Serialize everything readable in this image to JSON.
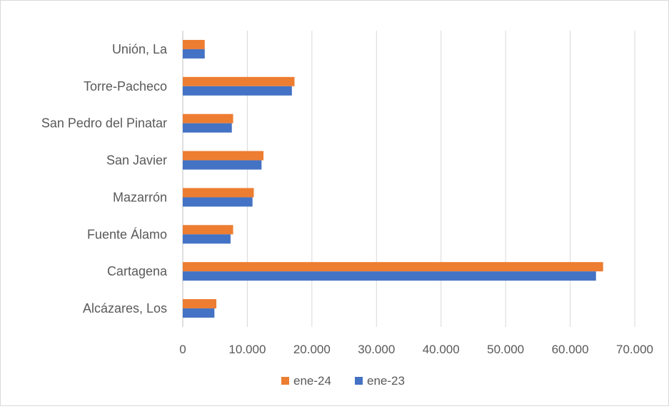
{
  "chart_data": {
    "type": "bar",
    "orientation": "horizontal",
    "title": "",
    "xlabel": "",
    "ylabel": "",
    "categories": [
      "Unión, La",
      "Torre-Pacheco",
      "San Pedro del Pinatar",
      "San Javier",
      "Mazarrón",
      "Fuente Álamo",
      "Cartagena",
      "Alcázares, Los"
    ],
    "series": [
      {
        "name": "ene-24",
        "color": "#ED7D31",
        "values": [
          3400,
          17300,
          7800,
          12500,
          11000,
          7800,
          65100,
          5200
        ]
      },
      {
        "name": "ene-23",
        "color": "#4472C4",
        "values": [
          3400,
          16900,
          7600,
          12200,
          10800,
          7400,
          64000,
          4900
        ]
      }
    ],
    "xlim": [
      0,
      70000
    ],
    "xticks": [
      "0",
      "10.000",
      "20.000",
      "30.000",
      "40.000",
      "50.000",
      "60.000",
      "70.000"
    ],
    "grid": true,
    "legend_position": "bottom"
  }
}
